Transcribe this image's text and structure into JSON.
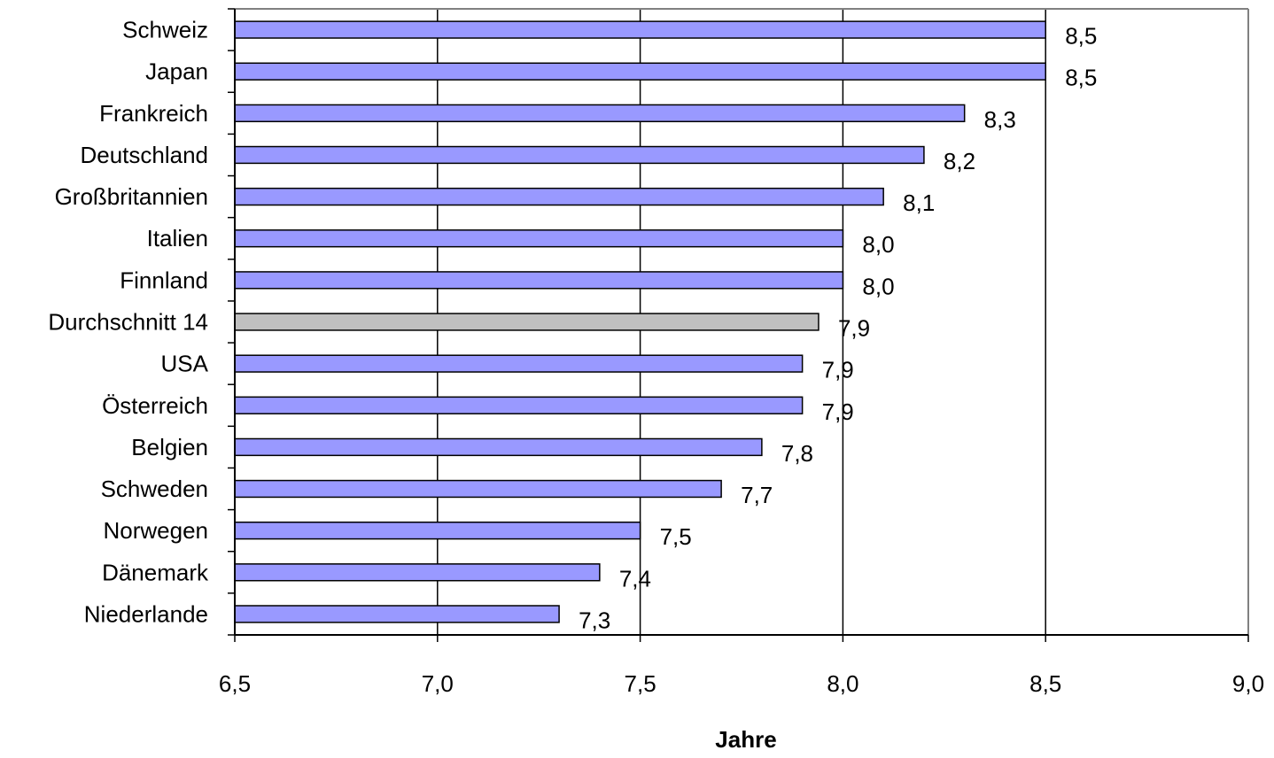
{
  "chart_data": {
    "type": "bar",
    "orientation": "horizontal",
    "categories": [
      "Schweiz",
      "Japan",
      "Frankreich",
      "Deutschland",
      "Großbritannien",
      "Italien",
      "Finnland",
      "Durchschnitt 14",
      "USA",
      "Österreich",
      "Belgien",
      "Schweden",
      "Norwegen",
      "Dänemark",
      "Niederlande"
    ],
    "values": [
      8.5,
      8.5,
      8.3,
      8.2,
      8.1,
      8.0,
      8.0,
      7.94,
      7.9,
      7.9,
      7.8,
      7.7,
      7.5,
      7.4,
      7.3
    ],
    "data_labels": [
      "8,5",
      "8,5",
      "8,3",
      "8,2",
      "8,1",
      "8,0",
      "8,0",
      "7,9",
      "7,9",
      "7,9",
      "7,8",
      "7,7",
      "7,5",
      "7,4",
      "7,3"
    ],
    "highlight_category": "Durchschnitt 14",
    "xlim": [
      6.5,
      9.0
    ],
    "xticks": [
      6.5,
      7.0,
      7.5,
      8.0,
      8.5,
      9.0
    ],
    "xtick_labels": [
      "6,5",
      "7,0",
      "7,5",
      "8,0",
      "8,5",
      "9,0"
    ],
    "xlabel": "Jahre",
    "ylabel": "",
    "grid": "vertical major gridlines",
    "legend": "none",
    "colors": {
      "bar": "#9999ff",
      "highlight_bar": "#c0c0c0",
      "bar_outline": "#000000",
      "grid": "#000000",
      "plot_border": "#808080"
    }
  }
}
